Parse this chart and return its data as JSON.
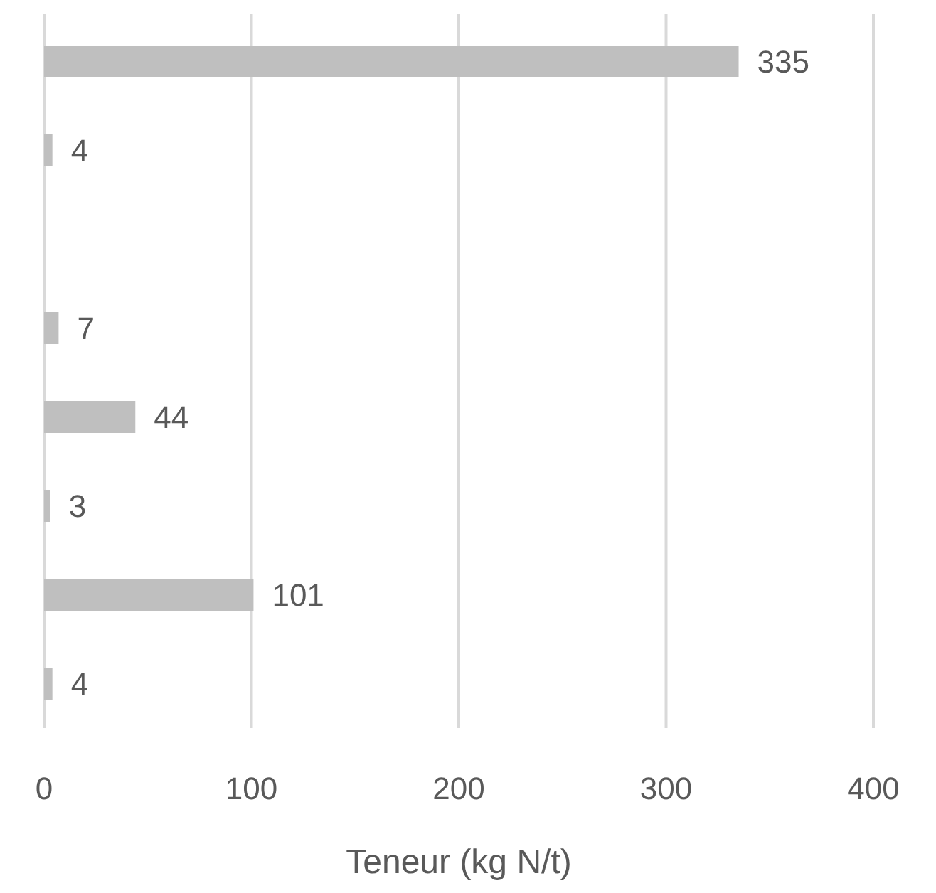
{
  "chart_data": {
    "type": "bar",
    "orientation": "horizontal",
    "xlabel": "Teneur (kg N/t)",
    "categories": [
      null,
      null,
      null,
      null,
      null,
      null,
      null,
      null
    ],
    "values": [
      335,
      4,
      null,
      7,
      44,
      3,
      101,
      4
    ],
    "color": "#bfbfbf",
    "xlim": [
      0,
      400
    ],
    "xticks": [
      0,
      100,
      200,
      300,
      400
    ],
    "grid": "x",
    "data_labels": true
  }
}
